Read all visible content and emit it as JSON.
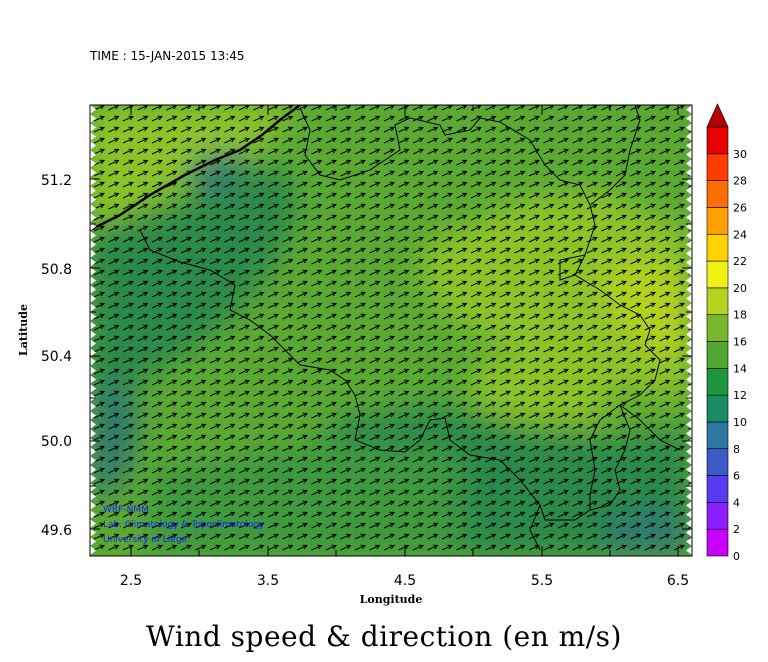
{
  "time_label": "TIME : 15-JAN-2015 13:45",
  "title": "Wind speed & direction (en m/s)",
  "credits": [
    "WRF-NMM",
    "Lab. Climatology & Topoclimatology",
    "University of Liege"
  ],
  "axes": {
    "xlabel": "Longitude",
    "ylabel": "Latitude",
    "xticks": [
      "2.5",
      "3.5",
      "4.5",
      "5.5",
      "6.5"
    ],
    "yticks": [
      "51.2",
      "50.8",
      "50.4",
      "50.0",
      "49.6"
    ],
    "xlim": [
      2.15,
      6.6
    ],
    "ylim": [
      49.47,
      51.55
    ]
  },
  "colorbar": {
    "labels": [
      "0",
      "2",
      "4",
      "6",
      "8",
      "10",
      "12",
      "14",
      "16",
      "18",
      "20",
      "22",
      "24",
      "26",
      "28",
      "30"
    ],
    "colors": [
      "#c800ff",
      "#8c1eff",
      "#5a3cf0",
      "#3c5ac8",
      "#2d78a0",
      "#1a8c64",
      "#1e963c",
      "#50a830",
      "#78b828",
      "#b4d21e",
      "#f0f014",
      "#ffd200",
      "#ffa000",
      "#ff6e00",
      "#ff3c00",
      "#e60000"
    ],
    "top_color": "#b40000"
  },
  "map": {
    "wind_direction_deg": 25,
    "colors": {
      "base": "#5aaa32",
      "light": "#8cc428",
      "bright": "#b4d21e",
      "medium": "#3c9a3c",
      "dark": "#2a8a4a",
      "deep": "#2d7a6e"
    }
  }
}
